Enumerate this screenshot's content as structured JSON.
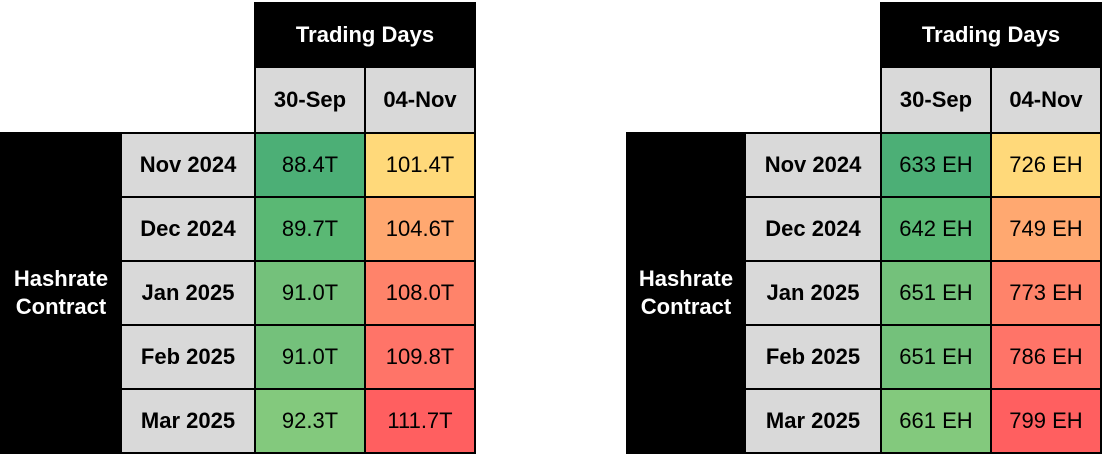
{
  "tables": [
    {
      "header": "Trading Days",
      "row_group_label_line1": "Hashrate",
      "row_group_label_line2": "Contract",
      "columns": [
        "30-Sep",
        "04-Nov"
      ],
      "rows": [
        {
          "label": "Nov 2024",
          "values": [
            "88.4T",
            "101.4T"
          ],
          "colors": [
            "#4caf76",
            "#ffd97a"
          ]
        },
        {
          "label": "Dec 2024",
          "values": [
            "89.7T",
            "104.6T"
          ],
          "colors": [
            "#5ab874",
            "#ffa870"
          ]
        },
        {
          "label": "Jan 2025",
          "values": [
            "91.0T",
            "108.0T"
          ],
          "colors": [
            "#74c17b",
            "#ff836a"
          ]
        },
        {
          "label": "Feb 2025",
          "values": [
            "91.0T",
            "109.8T"
          ],
          "colors": [
            "#74c17b",
            "#ff7468"
          ]
        },
        {
          "label": "Mar 2025",
          "values": [
            "92.3T",
            "111.7T"
          ],
          "colors": [
            "#83c97d",
            "#ff5f60"
          ]
        }
      ]
    },
    {
      "header": "Trading Days",
      "row_group_label_line1": "Hashrate",
      "row_group_label_line2": "Contract",
      "columns": [
        "30-Sep",
        "04-Nov"
      ],
      "rows": [
        {
          "label": "Nov 2024",
          "values": [
            "633 EH",
            "726 EH"
          ],
          "colors": [
            "#4caf76",
            "#ffd97a"
          ]
        },
        {
          "label": "Dec 2024",
          "values": [
            "642 EH",
            "749 EH"
          ],
          "colors": [
            "#5ab874",
            "#ffa870"
          ]
        },
        {
          "label": "Jan 2025",
          "values": [
            "651 EH",
            "773 EH"
          ],
          "colors": [
            "#74c17b",
            "#ff836a"
          ]
        },
        {
          "label": "Feb 2025",
          "values": [
            "651 EH",
            "786 EH"
          ],
          "colors": [
            "#74c17b",
            "#ff7468"
          ]
        },
        {
          "label": "Mar 2025",
          "values": [
            "661 EH",
            "799 EH"
          ],
          "colors": [
            "#83c97d",
            "#ff5f60"
          ]
        }
      ]
    }
  ]
}
